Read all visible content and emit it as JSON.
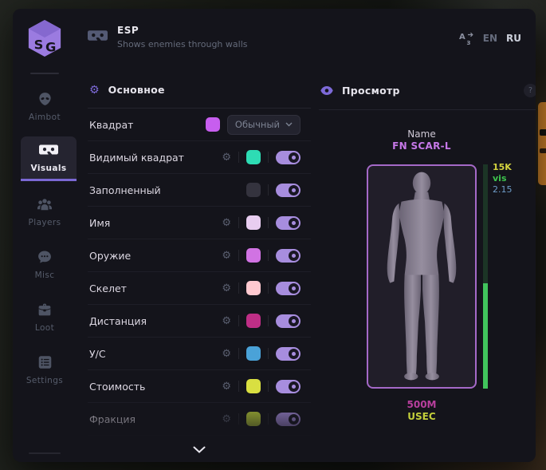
{
  "app": {
    "brand": "SG"
  },
  "header": {
    "title": "ESP",
    "subtitle": "Shows enemies through walls",
    "lang_en": "EN",
    "lang_ru": "RU"
  },
  "sidebar": {
    "items": [
      {
        "label": "Aimbot",
        "icon": "alien-icon",
        "active": false
      },
      {
        "label": "Visuals",
        "icon": "vr-goggles-icon",
        "active": true
      },
      {
        "label": "Players",
        "icon": "players-icon",
        "active": false
      },
      {
        "label": "Misc",
        "icon": "chat-icon",
        "active": false
      },
      {
        "label": "Loot",
        "icon": "briefcase-icon",
        "active": false
      },
      {
        "label": "Settings",
        "icon": "list-icon",
        "active": false
      }
    ]
  },
  "settings_panel": {
    "title": "Основное",
    "rows": [
      {
        "label": "Квадрат",
        "gear": false,
        "swatch": "#c75eef",
        "control": "dropdown",
        "dropdown_value": "Обычный"
      },
      {
        "label": "Видимый квадрат",
        "gear": true,
        "swatch": "#2edcb4",
        "control": "toggle",
        "toggle_on": true
      },
      {
        "label": "Заполненный",
        "gear": false,
        "swatch": "#34333e",
        "control": "toggle",
        "toggle_on": true
      },
      {
        "label": "Имя",
        "gear": true,
        "swatch": "#e8cdf0",
        "control": "toggle",
        "toggle_on": true
      },
      {
        "label": "Оружие",
        "gear": true,
        "swatch": "#d173e3",
        "control": "toggle",
        "toggle_on": true
      },
      {
        "label": "Скелет",
        "gear": true,
        "swatch": "#ffc9d0",
        "control": "toggle",
        "toggle_on": true
      },
      {
        "label": "Дистанция",
        "gear": true,
        "swatch": "#bf2e86",
        "control": "toggle",
        "toggle_on": true
      },
      {
        "label": "У/С",
        "gear": true,
        "swatch": "#4aa2d8",
        "control": "toggle",
        "toggle_on": true
      },
      {
        "label": "Стоимость",
        "gear": true,
        "swatch": "#d9df41",
        "control": "toggle",
        "toggle_on": true
      },
      {
        "label": "Фракция",
        "gear": true,
        "swatch": "#bed23a",
        "control": "toggle",
        "toggle_on": true
      }
    ]
  },
  "preview_panel": {
    "title": "Просмотр",
    "help": "?",
    "name_label": "Name",
    "weapon": "FN SCAR-L",
    "stats": {
      "value": "15K",
      "visibility": "vis",
      "extra": "2.15"
    },
    "distance": "500M",
    "faction": "USEC",
    "health_fill_percent": 47
  },
  "colors": {
    "accent_purple": "#7b68d4",
    "toggle_on": "#a78dde",
    "weapon_name": "#c678e8",
    "health_track": "#1c3526",
    "health_fill": "#41c45c",
    "stat_value": "#d3d33f",
    "stat_visibility": "#3dc44d",
    "stat_extra": "#6e9dc9",
    "distance": "#b93f9e",
    "faction": "#c3cf3b",
    "model_border": "#a569c8"
  }
}
